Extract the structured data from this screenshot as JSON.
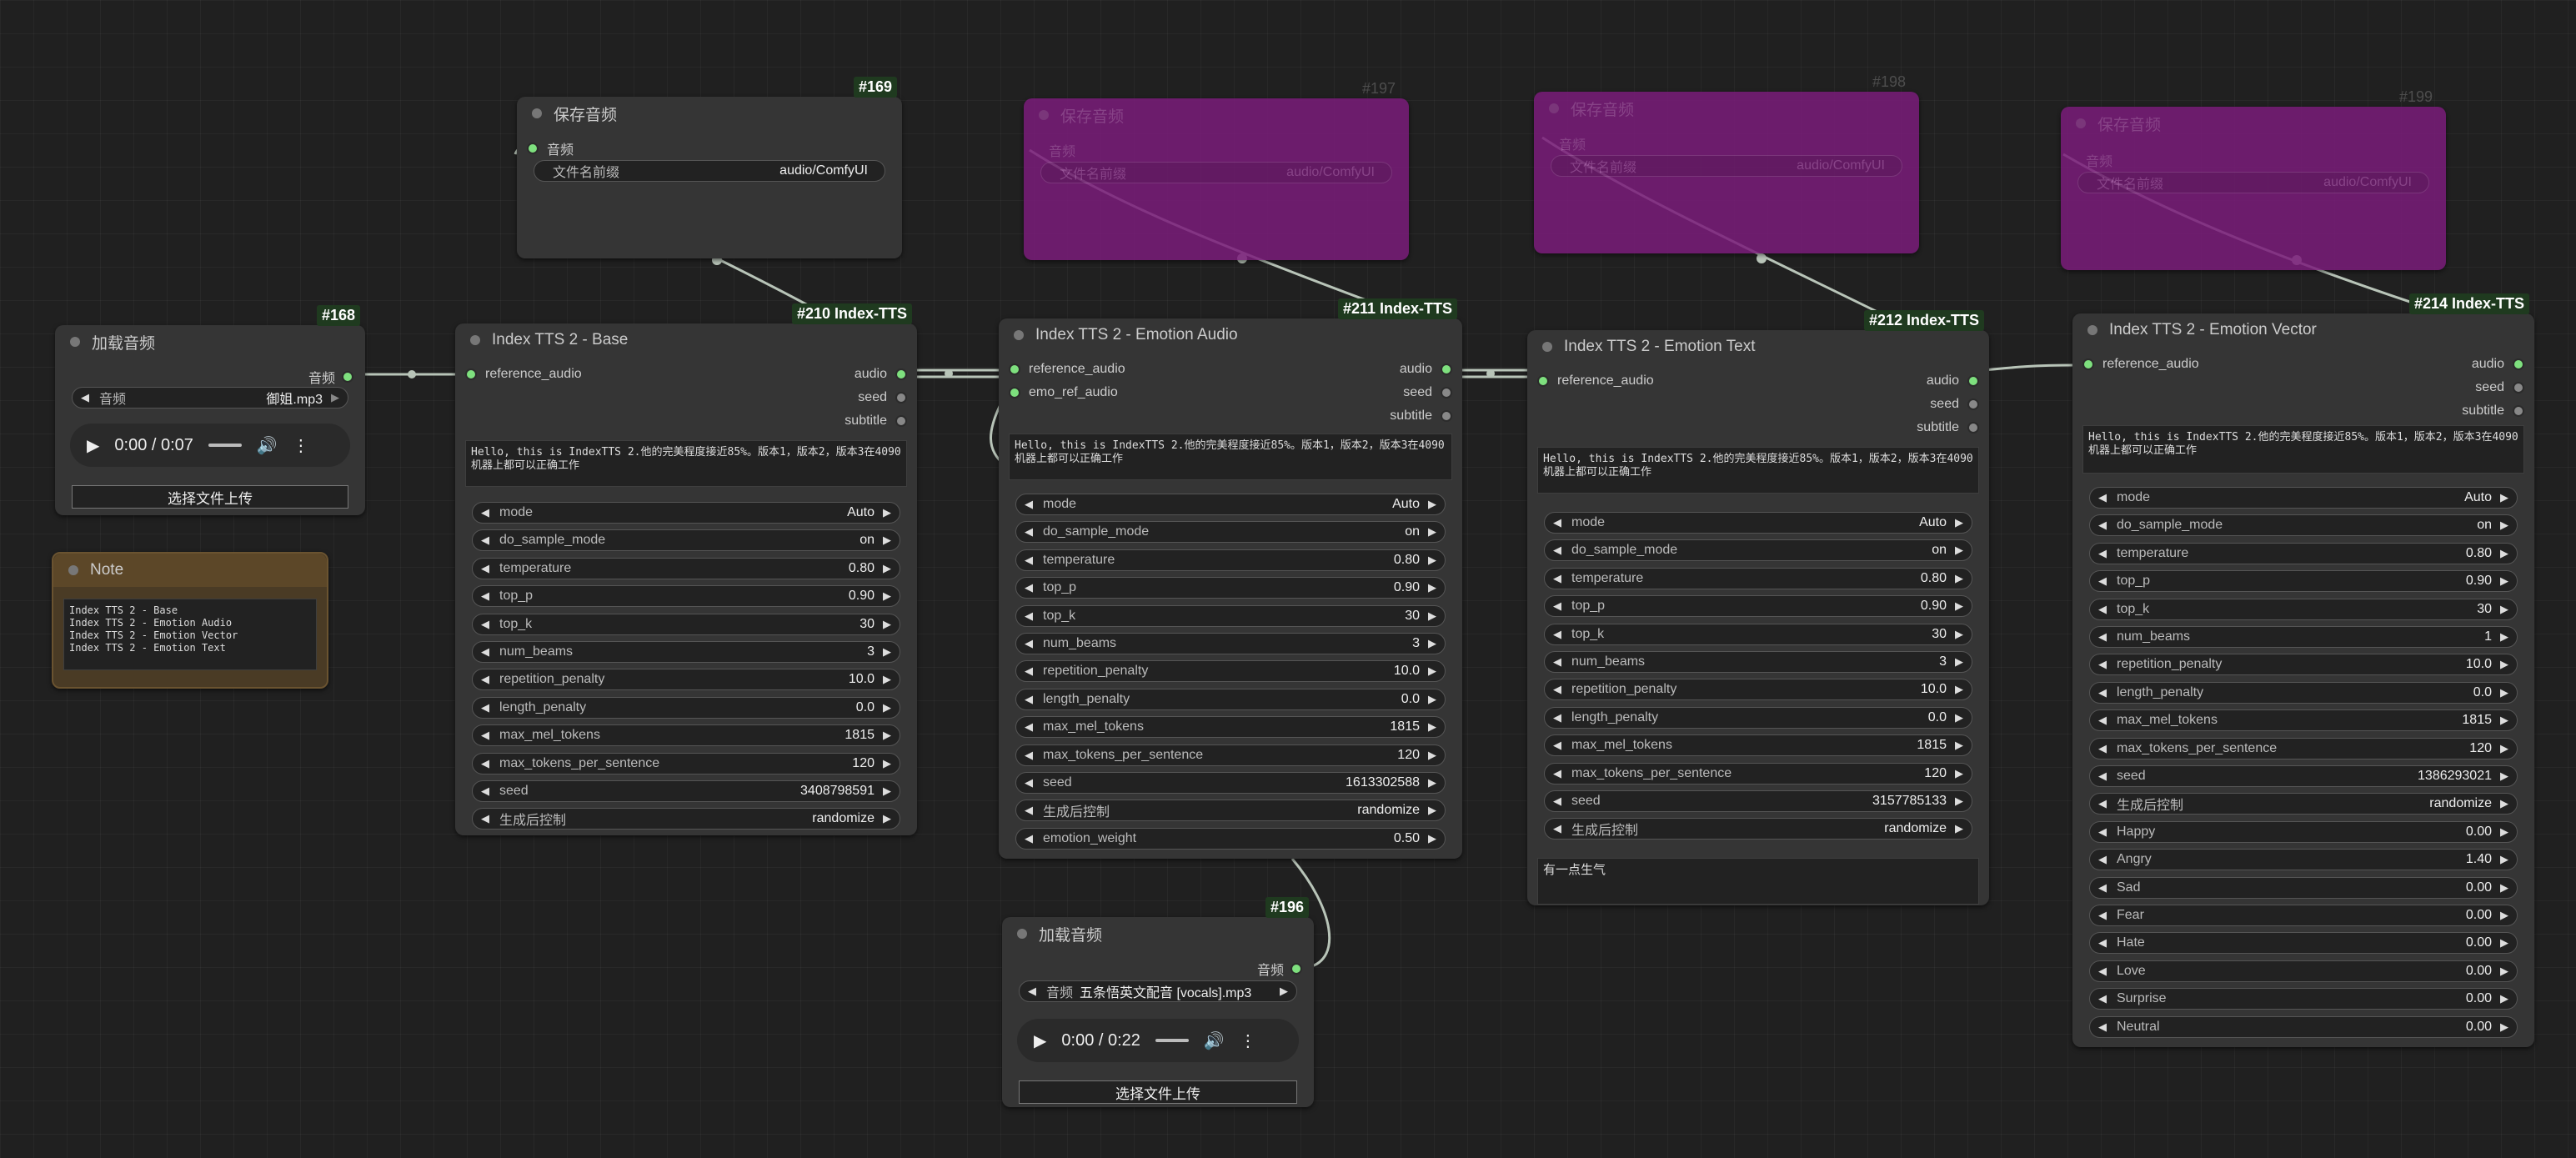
{
  "nodes": {
    "load168": {
      "id": "#168",
      "title": "加载音频",
      "output": "音频",
      "select_label": "音频",
      "select_value": "御姐.mp3",
      "time": "0:00 / 0:07",
      "upload_label": "选择文件上传"
    },
    "note": {
      "title": "Note",
      "text": "Index TTS 2 - Base\nIndex TTS 2 - Emotion Audio\nIndex TTS 2 - Emotion Vector\nIndex TTS 2 - Emotion Text"
    },
    "save169": {
      "id": "#169",
      "title": "保存音频",
      "input": "音频",
      "field_label": "文件名前缀",
      "field_value": "audio/ComfyUI"
    },
    "save197": {
      "id": "#197",
      "title": "保存音频",
      "input": "音频",
      "field_label": "文件名前缀",
      "field_value": "audio/ComfyUI"
    },
    "save198": {
      "id": "#198",
      "title": "保存音频",
      "input": "音频",
      "field_label": "文件名前缀",
      "field_value": "audio/ComfyUI"
    },
    "save199": {
      "id": "#199",
      "title": "保存音频",
      "input": "音频",
      "field_label": "文件名前缀",
      "field_value": "audio/ComfyUI"
    },
    "base": {
      "id": "#210 Index-TTS",
      "title": "Index TTS 2 - Base",
      "inputs": [
        "reference_audio"
      ],
      "outputs": [
        "audio",
        "seed",
        "subtitle"
      ],
      "text": "Hello, this is IndexTTS 2.他的完美程度接近85%。版本1，版本2，版本3在4090机器上都可以正确工作",
      "widgets": [
        {
          "label": "mode",
          "value": "Auto"
        },
        {
          "label": "do_sample_mode",
          "value": "on"
        },
        {
          "label": "temperature",
          "value": "0.80"
        },
        {
          "label": "top_p",
          "value": "0.90"
        },
        {
          "label": "top_k",
          "value": "30"
        },
        {
          "label": "num_beams",
          "value": "3"
        },
        {
          "label": "repetition_penalty",
          "value": "10.0"
        },
        {
          "label": "length_penalty",
          "value": "0.0"
        },
        {
          "label": "max_mel_tokens",
          "value": "1815"
        },
        {
          "label": "max_tokens_per_sentence",
          "value": "120"
        },
        {
          "label": "seed",
          "value": "3408798591"
        },
        {
          "label": "生成后控制",
          "value": "randomize"
        }
      ]
    },
    "emoaudio": {
      "id": "#211 Index-TTS",
      "title": "Index TTS 2 - Emotion Audio",
      "inputs": [
        "reference_audio",
        "emo_ref_audio"
      ],
      "outputs": [
        "audio",
        "seed",
        "subtitle"
      ],
      "text": "Hello, this is IndexTTS 2.他的完美程度接近85%。版本1，版本2，版本3在4090机器上都可以正确工作",
      "widgets": [
        {
          "label": "mode",
          "value": "Auto"
        },
        {
          "label": "do_sample_mode",
          "value": "on"
        },
        {
          "label": "temperature",
          "value": "0.80"
        },
        {
          "label": "top_p",
          "value": "0.90"
        },
        {
          "label": "top_k",
          "value": "30"
        },
        {
          "label": "num_beams",
          "value": "3"
        },
        {
          "label": "repetition_penalty",
          "value": "10.0"
        },
        {
          "label": "length_penalty",
          "value": "0.0"
        },
        {
          "label": "max_mel_tokens",
          "value": "1815"
        },
        {
          "label": "max_tokens_per_sentence",
          "value": "120"
        },
        {
          "label": "seed",
          "value": "1613302588"
        },
        {
          "label": "生成后控制",
          "value": "randomize"
        },
        {
          "label": "emotion_weight",
          "value": "0.50"
        }
      ]
    },
    "emotext": {
      "id": "#212 Index-TTS",
      "title": "Index TTS 2 - Emotion Text",
      "inputs": [
        "reference_audio"
      ],
      "outputs": [
        "audio",
        "seed",
        "subtitle"
      ],
      "text": "Hello, this is IndexTTS 2.他的完美程度接近85%。版本1，版本2，版本3在4090机器上都可以正确工作",
      "emotion_text": "有一点生气",
      "widgets": [
        {
          "label": "mode",
          "value": "Auto"
        },
        {
          "label": "do_sample_mode",
          "value": "on"
        },
        {
          "label": "temperature",
          "value": "0.80"
        },
        {
          "label": "top_p",
          "value": "0.90"
        },
        {
          "label": "top_k",
          "value": "30"
        },
        {
          "label": "num_beams",
          "value": "3"
        },
        {
          "label": "repetition_penalty",
          "value": "10.0"
        },
        {
          "label": "length_penalty",
          "value": "0.0"
        },
        {
          "label": "max_mel_tokens",
          "value": "1815"
        },
        {
          "label": "max_tokens_per_sentence",
          "value": "120"
        },
        {
          "label": "seed",
          "value": "3157785133"
        },
        {
          "label": "生成后控制",
          "value": "randomize"
        }
      ]
    },
    "emovec": {
      "id": "#214 Index-TTS",
      "title": "Index TTS 2 - Emotion Vector",
      "inputs": [
        "reference_audio"
      ],
      "outputs": [
        "audio",
        "seed",
        "subtitle"
      ],
      "text": "Hello, this is IndexTTS 2.他的完美程度接近85%。版本1，版本2，版本3在4090机器上都可以正确工作",
      "widgets": [
        {
          "label": "mode",
          "value": "Auto"
        },
        {
          "label": "do_sample_mode",
          "value": "on"
        },
        {
          "label": "temperature",
          "value": "0.80"
        },
        {
          "label": "top_p",
          "value": "0.90"
        },
        {
          "label": "top_k",
          "value": "30"
        },
        {
          "label": "num_beams",
          "value": "1"
        },
        {
          "label": "repetition_penalty",
          "value": "10.0"
        },
        {
          "label": "length_penalty",
          "value": "0.0"
        },
        {
          "label": "max_mel_tokens",
          "value": "1815"
        },
        {
          "label": "max_tokens_per_sentence",
          "value": "120"
        },
        {
          "label": "seed",
          "value": "1386293021"
        },
        {
          "label": "生成后控制",
          "value": "randomize"
        },
        {
          "label": "Happy",
          "value": "0.00"
        },
        {
          "label": "Angry",
          "value": "1.40"
        },
        {
          "label": "Sad",
          "value": "0.00"
        },
        {
          "label": "Fear",
          "value": "0.00"
        },
        {
          "label": "Hate",
          "value": "0.00"
        },
        {
          "label": "Love",
          "value": "0.00"
        },
        {
          "label": "Surprise",
          "value": "0.00"
        },
        {
          "label": "Neutral",
          "value": "0.00"
        }
      ]
    },
    "load196": {
      "id": "#196",
      "title": "加载音频",
      "output": "音频",
      "select_label": "音频",
      "select_value": "五条悟英文配音 [vocals].mp3",
      "time": "0:00 / 0:22",
      "upload_label": "选择文件上传"
    }
  },
  "colors": {
    "wire": "#b8c4b8",
    "link_dot": "#7ee07e",
    "muted_node": "#7a1c7a",
    "note_bg": "#4a3b25"
  }
}
